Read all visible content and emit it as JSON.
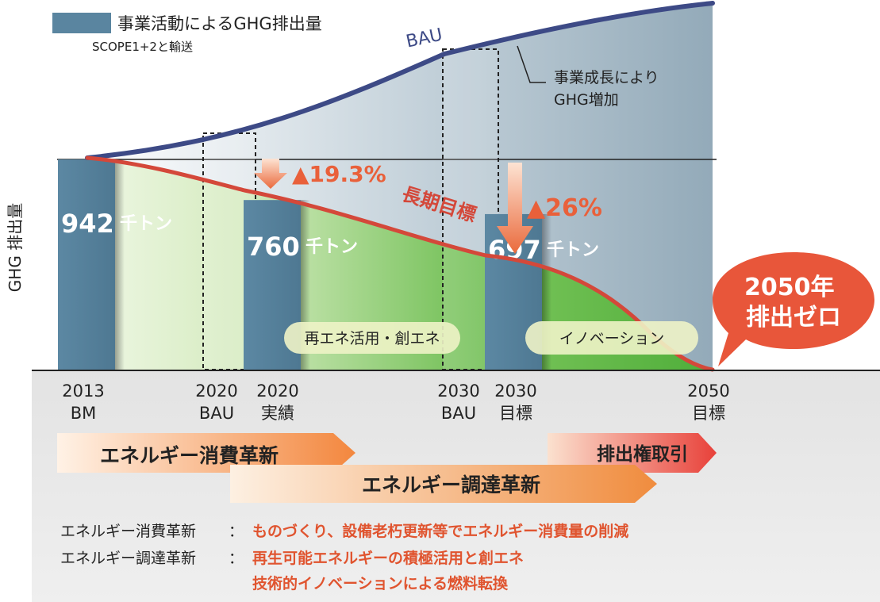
{
  "legend": {
    "label": "事業活動によるGHG排出量",
    "sublabel": "SCOPE1+2と輸送",
    "swatch_color": "#5a85a0"
  },
  "y_axis_label": "GHG 排出量",
  "bau_label": "BAU",
  "growth_note": [
    "事業成長により",
    "GHG増加"
  ],
  "long_term_label": "長期目標",
  "reduction_labels": [
    "▲19.3%",
    "▲26%"
  ],
  "zero_callout": [
    "2050年",
    "排出ゼロ"
  ],
  "bubbles": [
    "再エネ活用・創エネ",
    "イノベーション"
  ],
  "chart_data": {
    "type": "bar",
    "bars": [
      {
        "key": "2013BM",
        "value": 942,
        "unit": "千トン"
      },
      {
        "key": "2020実績",
        "value": 760,
        "unit": "千トン"
      },
      {
        "key": "2030目標",
        "value": 697,
        "unit": "千トン"
      }
    ],
    "bau_placeholders": [
      "2020BAU",
      "2030BAU"
    ],
    "target_2050": 0,
    "x_ticks": [
      {
        "line1": "2013",
        "line2": "BM"
      },
      {
        "line1": "2020",
        "line2": "BAU"
      },
      {
        "line1": "2020",
        "line2": "実績"
      },
      {
        "line1": "2030",
        "line2": "BAU"
      },
      {
        "line1": "2030",
        "line2": "目標"
      },
      {
        "line1": "2050",
        "line2": "目標"
      }
    ],
    "reductions_percent": [
      19.3,
      26
    ],
    "colors": {
      "bar": "#5a85a0",
      "bau_line": "#3d4a86",
      "target_line": "#d4483a",
      "arrow": "#ea6a3c",
      "green_light": "#e9f4dc",
      "green_dark": "#5db444",
      "bau_area": "#9fb4c1"
    }
  },
  "initiatives": [
    "エネルギー消費革新",
    "エネルギー調達革新",
    "排出権取引"
  ],
  "definitions": [
    {
      "term": "エネルギー消費革新",
      "sep": "：",
      "lines": [
        "ものづくり、設備老朽更新等でエネルギー消費量の削減"
      ]
    },
    {
      "term": "エネルギー調達革新",
      "sep": "：",
      "lines": [
        "再生可能エネルギーの積極活用と創エネ",
        "技術的イノベーションによる燃料転換"
      ]
    }
  ]
}
